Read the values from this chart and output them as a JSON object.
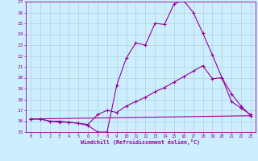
{
  "xlabel": "Windchill (Refroidissement éolien,°C)",
  "background_color": "#cceeff",
  "line_color": "#990099",
  "grid_color": "#aacccc",
  "xlim": [
    -0.5,
    23.5
  ],
  "ylim": [
    15,
    27
  ],
  "xticks": [
    0,
    1,
    2,
    3,
    4,
    5,
    6,
    7,
    8,
    9,
    10,
    11,
    12,
    13,
    14,
    15,
    16,
    17,
    18,
    19,
    20,
    21,
    22,
    23
  ],
  "yticks": [
    15,
    16,
    17,
    18,
    19,
    20,
    21,
    22,
    23,
    24,
    25,
    26,
    27
  ],
  "lines": [
    {
      "x": [
        0,
        1,
        2,
        3,
        4,
        5,
        6,
        7,
        8,
        9,
        10,
        11,
        12,
        13,
        14,
        15,
        16,
        17,
        18,
        19,
        20,
        21,
        22,
        23
      ],
      "y": [
        16.2,
        16.2,
        16.0,
        16.0,
        15.9,
        15.8,
        15.6,
        15.0,
        15.0,
        19.3,
        21.8,
        23.2,
        23.0,
        25.0,
        24.9,
        26.8,
        27.1,
        26.0,
        24.1,
        22.1,
        20.0,
        18.5,
        17.4,
        16.5
      ]
    },
    {
      "x": [
        0,
        1,
        2,
        3,
        4,
        5,
        6,
        7,
        8,
        9,
        10,
        11,
        12,
        13,
        14,
        15,
        16,
        17,
        18,
        19,
        20,
        21,
        22,
        23
      ],
      "y": [
        16.2,
        16.2,
        16.0,
        15.9,
        15.9,
        15.8,
        15.7,
        16.6,
        17.0,
        16.8,
        17.4,
        17.8,
        18.2,
        18.7,
        19.1,
        19.6,
        20.1,
        20.6,
        21.1,
        19.9,
        20.0,
        17.8,
        17.2,
        16.6
      ]
    },
    {
      "x": [
        0,
        23
      ],
      "y": [
        16.2,
        16.5
      ]
    }
  ]
}
